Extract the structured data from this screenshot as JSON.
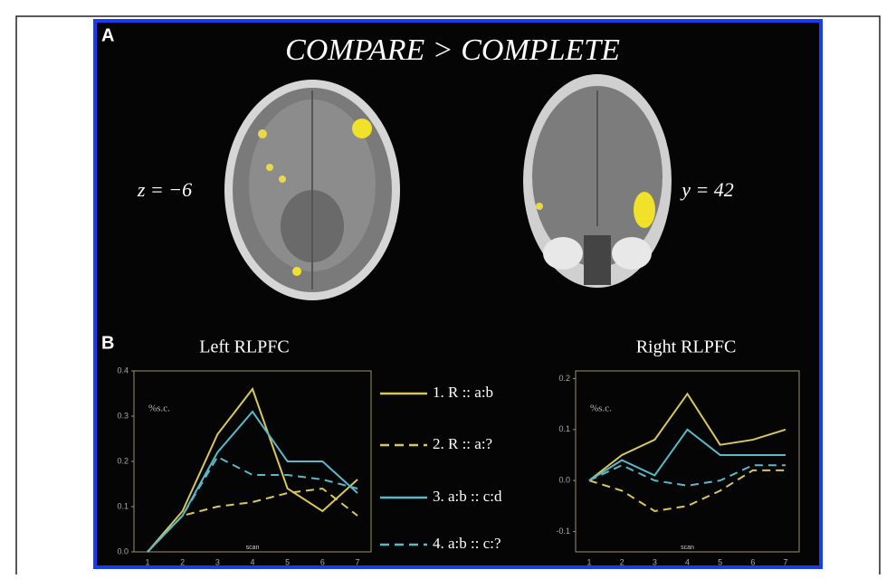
{
  "panel_a": {
    "label": "A",
    "title": "COMPARE > COMPLETE",
    "axial_label": "z = −6",
    "coronal_label": "y = 42"
  },
  "panel_b": {
    "label": "B"
  },
  "chart_data": [
    {
      "type": "line",
      "title": "Left RLPFC",
      "y_label": "%s.c.",
      "x_label": "scan",
      "categories": [
        1,
        2,
        3,
        4,
        5,
        6,
        7
      ],
      "ylim": [
        0,
        0.4
      ],
      "yticks": [
        {
          "value": 0,
          "label": "0.0"
        },
        0.1,
        0.2,
        0.3,
        0.4
      ],
      "series": [
        {
          "name": "1. R :: a:b",
          "color": "#d8c85a",
          "dashed": false,
          "values": [
            0.0,
            0.09,
            0.26,
            0.36,
            0.14,
            0.09,
            0.16
          ]
        },
        {
          "name": "2. R :: a:?",
          "color": "#d8c85a",
          "dashed": true,
          "values": [
            0.0,
            0.08,
            0.1,
            0.11,
            0.13,
            0.14,
            0.08
          ]
        },
        {
          "name": "3. a:b :: c:d",
          "color": "#5ab8c8",
          "dashed": false,
          "values": [
            0.0,
            0.08,
            0.22,
            0.31,
            0.2,
            0.2,
            0.13
          ]
        },
        {
          "name": "4. a:b :: c:?",
          "color": "#5ab8c8",
          "dashed": true,
          "values": [
            0.0,
            0.08,
            0.21,
            0.17,
            0.17,
            0.16,
            0.14
          ]
        }
      ]
    },
    {
      "type": "line",
      "title": "Right RLPFC",
      "y_label": "%s.c.",
      "x_label": "scan",
      "categories": [
        1,
        2,
        3,
        4,
        5,
        6,
        7
      ],
      "ylim": [
        -0.14,
        0.215
      ],
      "yticks": [
        -0.1,
        {
          "value": 0,
          "label": "0.0"
        },
        0.1,
        0.2
      ],
      "series": [
        {
          "color": "#d8c85a",
          "dashed": false,
          "values": [
            0.0,
            0.05,
            0.08,
            0.17,
            0.07,
            0.08,
            0.1
          ]
        },
        {
          "color": "#d8c85a",
          "dashed": true,
          "values": [
            0.0,
            -0.02,
            -0.06,
            -0.05,
            -0.02,
            0.02,
            0.02
          ]
        },
        {
          "color": "#5ab8c8",
          "dashed": false,
          "values": [
            0.0,
            0.04,
            0.01,
            0.1,
            0.05,
            0.05,
            0.05
          ]
        },
        {
          "color": "#5ab8c8",
          "dashed": true,
          "values": [
            0.0,
            0.03,
            0.0,
            -0.01,
            0.0,
            0.03,
            0.03
          ]
        }
      ]
    }
  ]
}
